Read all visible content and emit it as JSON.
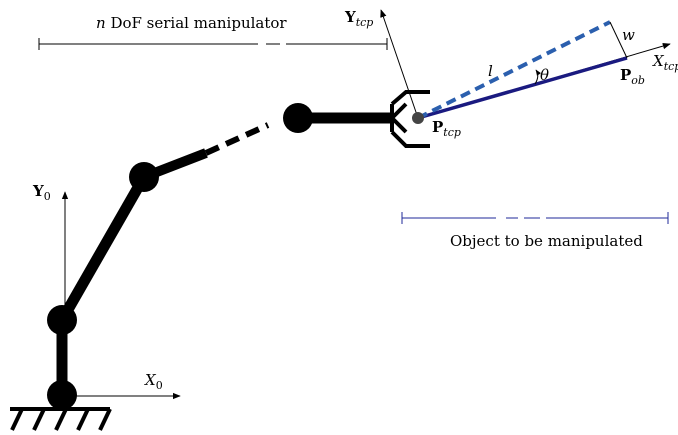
{
  "diagram": {
    "manipulator_label": {
      "var": "n",
      "text": " DoF serial manipulator"
    },
    "object_label": "Object to be manipulated",
    "base_frame": {
      "y_axis": {
        "main": "Y",
        "sub": "0"
      },
      "x_axis": {
        "main": "X",
        "sub": "0"
      }
    },
    "tcp_frame": {
      "y_axis": {
        "main": "Y",
        "sub": "tcp"
      },
      "x_axis": {
        "main": "X",
        "sub": "tcp"
      }
    },
    "points": {
      "tcp": {
        "main": "P",
        "sub": "tcp"
      },
      "ob": {
        "main": "P",
        "sub": "ob"
      }
    },
    "symbols": {
      "length": "l",
      "angle": "θ",
      "width": "w"
    },
    "colors": {
      "robot": "#000000",
      "object": "#1a1a80",
      "object_dashed": "#2b5fae",
      "object_span": "#1f2a9a"
    }
  }
}
